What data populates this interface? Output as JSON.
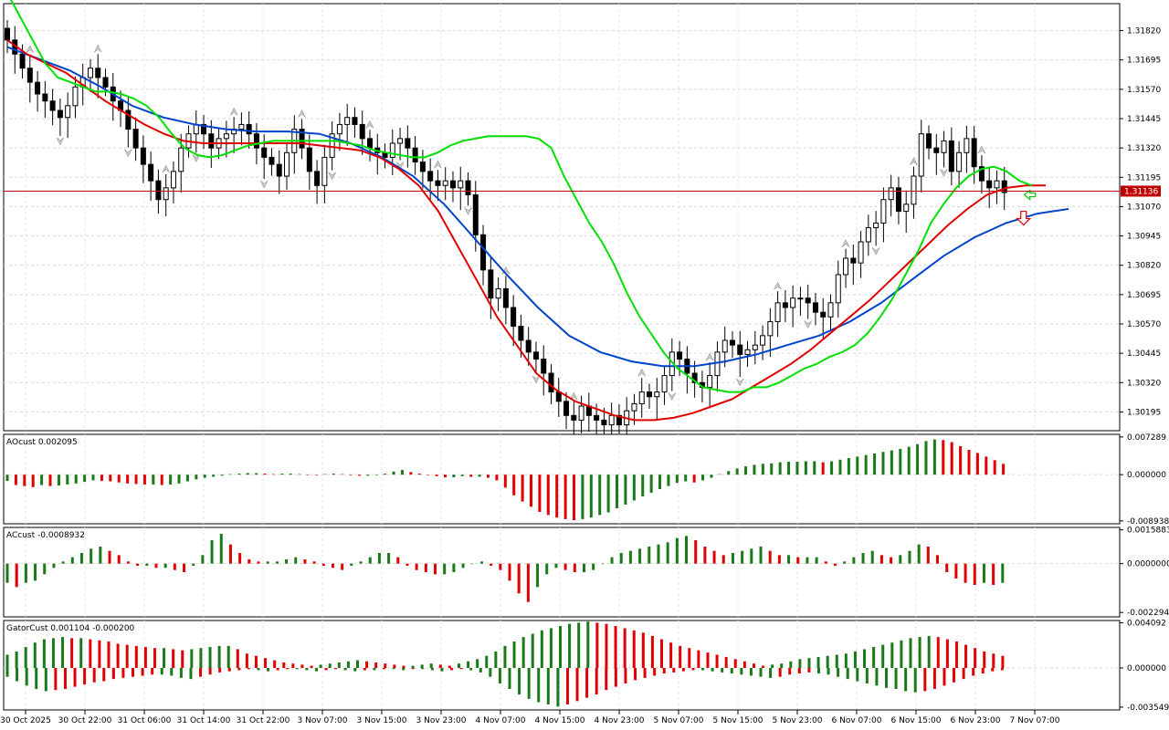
{
  "chart_data": [
    {
      "panel": "price",
      "type": "candlestick",
      "title": "",
      "current_price": "1.31136",
      "y_ticks": [
        "1.31820",
        "1.31695",
        "1.31570",
        "1.31445",
        "1.31320",
        "1.31195",
        "1.31070",
        "1.30945",
        "1.30820",
        "1.30695",
        "1.30570",
        "1.30445",
        "1.30320",
        "1.30195"
      ],
      "ylim": [
        1.30115,
        1.31935
      ],
      "x_ticks": [
        "30 Oct 2025",
        "30 Oct 22:00",
        "31 Oct 06:00",
        "31 Oct 14:00",
        "31 Oct 22:00",
        "3 Nov 07:00",
        "3 Nov 15:00",
        "3 Nov 23:00",
        "4 Nov 07:00",
        "4 Nov 15:00",
        "4 Nov 23:00",
        "5 Nov 07:00",
        "5 Nov 15:00",
        "5 Nov 23:00",
        "6 Nov 07:00",
        "6 Nov 15:00",
        "6 Nov 23:00",
        "7 Nov 07:00"
      ],
      "colors": {
        "bull": "#ffffff",
        "bear": "#000000",
        "ma_fast": "#00e000",
        "ma_mid": "#e00000",
        "ma_slow": "#0044cc",
        "price_line": "#c00000"
      },
      "close": [
        1.3178,
        1.3172,
        1.3166,
        1.316,
        1.3155,
        1.3152,
        1.3148,
        1.3145,
        1.315,
        1.3158,
        1.3162,
        1.3166,
        1.3162,
        1.3158,
        1.3152,
        1.3148,
        1.314,
        1.3132,
        1.3125,
        1.3118,
        1.311,
        1.3115,
        1.3122,
        1.3132,
        1.3138,
        1.3142,
        1.3138,
        1.3132,
        1.3136,
        1.3138,
        1.314,
        1.3142,
        1.3138,
        1.3132,
        1.3128,
        1.3125,
        1.312,
        1.313,
        1.314,
        1.3132,
        1.3122,
        1.3116,
        1.3128,
        1.3138,
        1.3142,
        1.3145,
        1.3142,
        1.3136,
        1.3132,
        1.313,
        1.3128,
        1.3134,
        1.3136,
        1.3132,
        1.3126,
        1.3122,
        1.3118,
        1.3116,
        1.3118,
        1.3115,
        1.3118,
        1.3112,
        1.3095,
        1.308,
        1.3068,
        1.3072,
        1.3064,
        1.3056,
        1.305,
        1.3045,
        1.3042,
        1.3036,
        1.3028,
        1.3024,
        1.3018,
        1.3016,
        1.3022,
        1.3018,
        1.3016,
        1.3014,
        1.3018,
        1.3014,
        1.302,
        1.3023,
        1.3028,
        1.3026,
        1.3028,
        1.3035,
        1.3045,
        1.3042,
        1.3036,
        1.3032,
        1.303,
        1.3035,
        1.3045,
        1.305,
        1.3048,
        1.3044,
        1.3046,
        1.3048,
        1.3052,
        1.3058,
        1.3066,
        1.3064,
        1.3068,
        1.3068,
        1.3066,
        1.3062,
        1.306,
        1.3066,
        1.3078,
        1.3085,
        1.3083,
        1.3092,
        1.3098,
        1.31,
        1.311,
        1.3115,
        1.3105,
        1.3108,
        1.312,
        1.3138,
        1.3132,
        1.313,
        1.3135,
        1.3122,
        1.313,
        1.3136,
        1.3124,
        1.3118,
        1.3115,
        1.3118,
        1.3113
      ],
      "ma_fast": [
        1.3198,
        1.3188,
        1.3178,
        1.3168,
        1.3162,
        1.316,
        1.3158,
        1.3156,
        1.3156,
        1.3155,
        1.3153,
        1.315,
        1.3145,
        1.3138,
        1.3132,
        1.3129,
        1.3128,
        1.3129,
        1.3131,
        1.3133,
        1.3134,
        1.3135,
        1.3135,
        1.3135,
        1.3135,
        1.3135,
        1.3135,
        1.3134,
        1.3133,
        1.3131,
        1.313,
        1.3129,
        1.3128,
        1.3128,
        1.313,
        1.3133,
        1.3135,
        1.3136,
        1.3137,
        1.3137,
        1.3137,
        1.3137,
        1.3136,
        1.3132,
        1.312,
        1.311,
        1.31,
        1.3092,
        1.3082,
        1.307,
        1.306,
        1.3052,
        1.3044,
        1.3038,
        1.3034,
        1.303,
        1.3029,
        1.3028,
        1.3028,
        1.303,
        1.303,
        1.3032,
        1.3035,
        1.3038,
        1.304,
        1.3043,
        1.3045,
        1.3048,
        1.3053,
        1.306,
        1.3068,
        1.3078,
        1.3088,
        1.31,
        1.3108,
        1.3115,
        1.312,
        1.3123,
        1.3124,
        1.3122,
        1.3118,
        1.3116
      ],
      "ma_mid": [
        1.3178,
        1.3172,
        1.3168,
        1.3164,
        1.3158,
        1.3152,
        1.3147,
        1.3142,
        1.3138,
        1.3135,
        1.3134,
        1.3134,
        1.3134,
        1.3134,
        1.3134,
        1.3134,
        1.3133,
        1.3132,
        1.3131,
        1.3128,
        1.3123,
        1.3116,
        1.3105,
        1.309,
        1.3075,
        1.306,
        1.3048,
        1.3036,
        1.3029,
        1.3024,
        1.3021,
        1.3018,
        1.3016,
        1.3016,
        1.3017,
        1.3019,
        1.3022,
        1.3025,
        1.303,
        1.3035,
        1.304,
        1.3046,
        1.3053,
        1.306,
        1.3067,
        1.3075,
        1.3083,
        1.3091,
        1.3099,
        1.3106,
        1.3112,
        1.3115,
        1.3116,
        1.3116
      ],
      "ma_slow": [
        1.3175,
        1.317,
        1.3165,
        1.3158,
        1.315,
        1.3145,
        1.3142,
        1.314,
        1.3139,
        1.3139,
        1.3138,
        1.3134,
        1.3128,
        1.312,
        1.3108,
        1.3093,
        1.3078,
        1.3064,
        1.3052,
        1.3045,
        1.3041,
        1.3039,
        1.3039,
        1.3041,
        1.3044,
        1.3048,
        1.3052,
        1.3058,
        1.3066,
        1.3076,
        1.3086,
        1.3094,
        1.31,
        1.3104,
        1.3106
      ]
    },
    {
      "panel": "ao",
      "type": "bar",
      "label": "AOcust 0.002095",
      "y_ticks": [
        "0.007289",
        "0.000000",
        "-0.008938"
      ],
      "ylim": [
        -0.0095,
        0.0078
      ],
      "up_color": "#1a7a1a",
      "down_color": "#e00000",
      "values": [
        -0.0012,
        -0.002,
        -0.0022,
        -0.0024,
        -0.002,
        -0.0022,
        -0.0021,
        -0.0019,
        -0.0017,
        -0.0014,
        -0.0011,
        -0.0012,
        -0.0013,
        -0.0015,
        -0.0017,
        -0.0018,
        -0.0019,
        -0.0019,
        -0.002,
        -0.0019,
        -0.0017,
        -0.0013,
        -0.0009,
        -0.0006,
        -0.0004,
        -0.0002,
        0.0001,
        0.0002,
        0.0003,
        0.0003,
        0.0002,
        0.0001,
        0.0002,
        0.0002,
        0.0001,
        0.0,
        -0.0001,
        0.0001,
        0.0002,
        0.0001,
        -0.0001,
        -0.0002,
        -0.0002,
        -0.0001,
        0.0002,
        0.0006,
        0.0009,
        0.0005,
        0.0002,
        -0.0001,
        -0.0003,
        -0.0005,
        -0.0005,
        -0.0003,
        -0.0004,
        -0.0004,
        -0.0006,
        -0.0011,
        -0.0025,
        -0.004,
        -0.0052,
        -0.0062,
        -0.0072,
        -0.0078,
        -0.0083,
        -0.0086,
        -0.0088,
        -0.0086,
        -0.0083,
        -0.0078,
        -0.0073,
        -0.0065,
        -0.0058,
        -0.005,
        -0.0042,
        -0.0035,
        -0.0028,
        -0.0022,
        -0.0016,
        -0.0013,
        -0.0015,
        -0.0011,
        -0.0006,
        0.0001,
        0.0007,
        0.0012,
        0.0016,
        0.0019,
        0.0021,
        0.0022,
        0.0024,
        0.0025,
        0.0025,
        0.0026,
        0.0026,
        0.0024,
        0.0026,
        0.0029,
        0.0032,
        0.0035,
        0.0038,
        0.0041,
        0.0044,
        0.0047,
        0.005,
        0.0054,
        0.0059,
        0.0065,
        0.0068,
        0.0067,
        0.0063,
        0.0055,
        0.0048,
        0.0042,
        0.0035,
        0.0028,
        0.0021
      ]
    },
    {
      "panel": "ac",
      "type": "bar",
      "label": "ACcust -0.0008932",
      "y_ticks": [
        "0.0015883",
        "0.0000000",
        "-0.0022942"
      ],
      "ylim": [
        -0.0025,
        0.0017
      ],
      "up_color": "#1a7a1a",
      "down_color": "#e00000",
      "values": [
        -0.0009,
        -0.0011,
        -0.0009,
        -0.0008,
        -0.0005,
        -0.0002,
        0.0001,
        0.0003,
        0.0005,
        0.0007,
        0.0008,
        0.0006,
        0.0004,
        0.0001,
        -0.0001,
        -0.0001,
        -0.0002,
        -0.0002,
        -0.0003,
        -0.0004,
        -0.0001,
        0.0004,
        0.0011,
        0.0014,
        0.0009,
        0.0005,
        0.0002,
        0.0001,
        0.0001,
        0.0001,
        0.0002,
        0.0003,
        0.0002,
        0.0001,
        -0.0001,
        -0.0002,
        -0.0003,
        -0.0001,
        0.0001,
        0.0003,
        0.0005,
        0.0005,
        0.0003,
        -0.0001,
        -0.0003,
        -0.0004,
        -0.0005,
        -0.0005,
        -0.0004,
        -0.0002,
        0.0,
        0.0001,
        -0.0001,
        -0.0003,
        -0.0008,
        -0.0014,
        -0.0018,
        -0.0011,
        -0.0005,
        -0.0002,
        -0.0003,
        -0.0004,
        -0.0004,
        -0.0003,
        0.0,
        0.0003,
        0.0005,
        0.0006,
        0.0007,
        0.0008,
        0.0009,
        0.001,
        0.0012,
        0.0013,
        0.0011,
        0.0008,
        0.0006,
        0.0004,
        0.0005,
        0.0006,
        0.0007,
        0.0008,
        0.0006,
        0.0004,
        0.0004,
        0.0003,
        0.0003,
        0.0003,
        0.0001,
        -0.0001,
        0.0001,
        0.0003,
        0.0005,
        0.0006,
        0.0004,
        0.0003,
        0.0004,
        0.0006,
        0.0009,
        0.0008,
        0.0004,
        -0.0004,
        -0.0007,
        -0.0009,
        -0.001,
        -0.0009,
        -0.001,
        -0.0009
      ]
    },
    {
      "panel": "gator",
      "type": "bar",
      "label": "GatorCust 0.001104 -0.000200",
      "y_ticks": [
        "0.004092",
        "0.000000",
        "-0.003549"
      ],
      "ylim": [
        -0.0038,
        0.0043
      ],
      "up_color": "#1a7a1a",
      "down_color": "#e00000",
      "series": [
        {
          "values": [
            0.0012,
            0.0015,
            0.0019,
            0.0023,
            0.0026,
            0.0027,
            0.0028,
            0.0027,
            0.0027,
            0.0026,
            0.0025,
            0.0024,
            0.0022,
            0.0021,
            0.002,
            0.0019,
            0.0018,
            0.0018,
            0.0017,
            0.0016,
            0.0017,
            0.0018,
            0.0019,
            0.002,
            0.002,
            0.0017,
            0.0013,
            0.0011,
            0.0009,
            0.0007,
            0.0005,
            0.0004,
            0.0003,
            0.0002,
            0.0003,
            0.0004,
            0.0005,
            0.0006,
            0.0007,
            0.0006,
            0.0005,
            0.0004,
            0.0003,
            0.0002,
            0.0002,
            0.0003,
            0.0004,
            0.0003,
            0.0002,
            0.0004,
            0.0006,
            0.0008,
            0.0011,
            0.0015,
            0.002,
            0.0024,
            0.0028,
            0.0031,
            0.0034,
            0.0036,
            0.0038,
            0.004,
            0.0041,
            0.0042,
            0.0041,
            0.004,
            0.0038,
            0.0036,
            0.0034,
            0.0032,
            0.0029,
            0.0026,
            0.0023,
            0.002,
            0.0018,
            0.0016,
            0.0014,
            0.0012,
            0.001,
            0.0008,
            0.0006,
            0.0004,
            0.0002,
            0.0003,
            0.0004,
            0.0006,
            0.0008,
            0.0009,
            0.001,
            0.0011,
            0.0012,
            0.0013,
            0.0015,
            0.0017,
            0.0019,
            0.0021,
            0.0023,
            0.0025,
            0.0027,
            0.0028,
            0.0029,
            0.0028,
            0.0026,
            0.0024,
            0.0021,
            0.0018,
            0.0015,
            0.0013,
            0.0011
          ]
        },
        {
          "values": [
            -0.0008,
            -0.0012,
            -0.0016,
            -0.0019,
            -0.0021,
            -0.002,
            -0.0019,
            -0.0017,
            -0.0015,
            -0.0013,
            -0.0012,
            -0.001,
            -0.0009,
            -0.0008,
            -0.0007,
            -0.0006,
            -0.0006,
            -0.0007,
            -0.0009,
            -0.001,
            -0.0008,
            -0.0006,
            -0.0004,
            -0.0003,
            -0.0002,
            -0.0001,
            -0.0002,
            -0.0003,
            -0.0002,
            -0.0001,
            -0.0001,
            -0.0002,
            -0.0003,
            -0.0002,
            -0.0001,
            -0.0002,
            -0.0003,
            -0.0002,
            -0.0002,
            -0.0001,
            -0.0001,
            -0.0002,
            -0.0001,
            -0.0001,
            -0.0002,
            -0.0003,
            -0.0002,
            -0.0001,
            -0.0002,
            -0.0004,
            -0.0008,
            -0.0014,
            -0.0019,
            -0.0024,
            -0.0028,
            -0.0031,
            -0.0033,
            -0.0035,
            -0.0033,
            -0.003,
            -0.0027,
            -0.0024,
            -0.002,
            -0.0017,
            -0.0014,
            -0.0011,
            -0.0009,
            -0.0007,
            -0.0005,
            -0.0004,
            -0.0003,
            -0.0002,
            -0.0002,
            -0.0003,
            -0.0004,
            -0.0005,
            -0.0006,
            -0.0007,
            -0.0008,
            -0.0009,
            -0.0008,
            -0.0006,
            -0.0005,
            -0.0004,
            -0.0005,
            -0.0006,
            -0.0008,
            -0.001,
            -0.0012,
            -0.0014,
            -0.0016,
            -0.0018,
            -0.0019,
            -0.0021,
            -0.0022,
            -0.0021,
            -0.0019,
            -0.0016,
            -0.0013,
            -0.001,
            -0.0007,
            -0.0005,
            -0.0003,
            -0.0002
          ]
        }
      ]
    }
  ]
}
